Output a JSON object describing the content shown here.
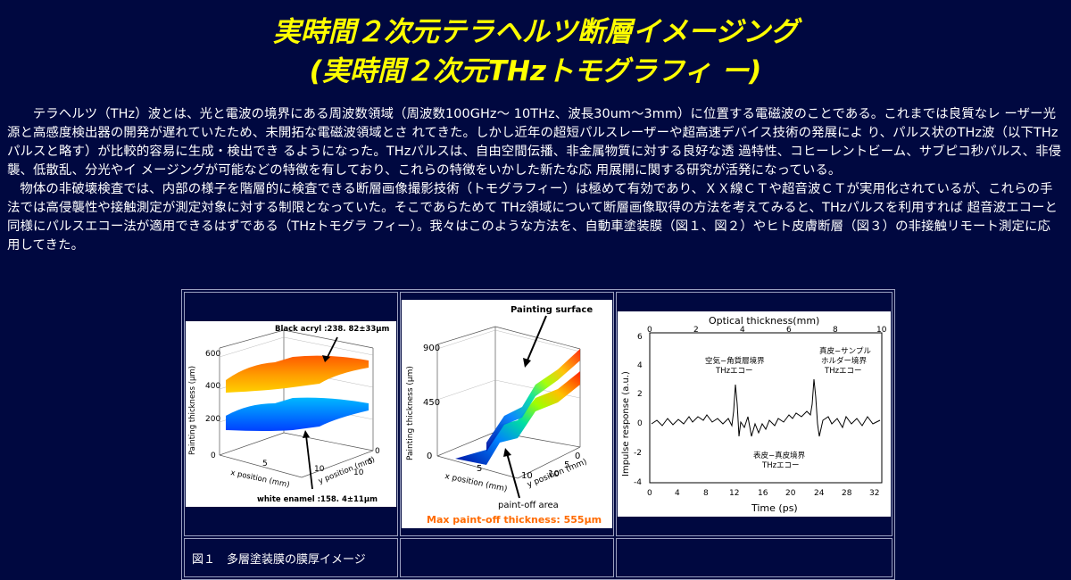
{
  "title": {
    "line1": "実時間２次元テラヘルツ断層イメージング",
    "line2": "(実時間２次元THzトモグラフィ ー)"
  },
  "intro": {
    "p1": "テラヘルツ（THz）波とは、光と電波の境界にある周波数領域（周波数100GHz～ 10THz、波長30um～3mm）に位置する電磁波のことである。これまでは良質なレ ーザー光源と高感度検出器の開発が遅れていたため、未開拓な電磁波領域とさ れてきた。しかし近年の超短パルスレーザーや超高速デバイス技術の発展によ り、パルス状のTHz波（以下THzパルスと略す）が比較的容易に生成・検出でき るようになった。THzパルスは、自由空間伝播、非金属物質に対する良好な透 過特性、コヒーレントビーム、サブピコ秒パルス、非侵襲、低散乱、分光やイ メージングが可能などの特徴を有しており、これらの特徴をいかした新たな応 用展開に関する研究が活発になっている。",
    "p2": "物体の非破壊検査では、内部の様子を階層的に検査できる断層画像撮影技術（トモグラフィー）は極めて有効であり、ＸＸ線ＣＴや超音波ＣＴが実用化されているが、これらの手法では高侵襲性や接触測定が測定対象に対する制限となっていた。そこであらためて THz領域について断層画像取得の方法を考えてみると、THzパルスを利用すれば 超音波エコーと同様にパルスエコー法が適用できるはずである（THzトモグラ フィー）。我々はこのような方法を、自動車塗装膜（図１、図２）やヒト皮膚断層（図３）の非接触リモート測定に応用してきた。"
  },
  "figure1": {
    "top_label": "Black acryl :238. 82±33μm",
    "bottom_label": "white enamel :158. 4±11μm",
    "zlabel": "Painting thickness (μm)",
    "xlabel": "x position (mm)",
    "ylabel": "y position (mm)",
    "z_ticks": [
      "600",
      "400",
      "200",
      "0"
    ],
    "x_ticks": [
      "5",
      "10"
    ],
    "y_ticks": [
      "0",
      "5",
      "10"
    ],
    "caption": "図１　多層塗装膜の膜厚イメージ"
  },
  "figure2": {
    "top_label": "Painting surface",
    "zlabel": "Painting thickness (μm)",
    "xlabel": "x position (mm)",
    "ylabel": "y position (mm)",
    "z_ticks": [
      "900",
      "450",
      "0"
    ],
    "x_ticks": [
      "5",
      "10"
    ],
    "y_ticks": [
      "0",
      "5",
      "10"
    ],
    "bottom_label": "paint-off area",
    "highlight": "Max paint-off thickness: 555μm"
  },
  "figure3": {
    "top_axis_label": "Optical thickness(mm)",
    "top_ticks": [
      "0",
      "2",
      "4",
      "6",
      "8",
      "10"
    ],
    "ylabel": "Impulse response (a.u.)",
    "y_ticks": [
      "6",
      "4",
      "2",
      "0",
      "-2",
      "-4"
    ],
    "xlabel": "Time (ps)",
    "x_ticks": [
      "0",
      "4",
      "8",
      "12",
      "16",
      "20",
      "24",
      "28",
      "32"
    ],
    "ann1_l1": "空気−角質層境界",
    "ann1_l2": "THzエコー",
    "ann2_l1": "真皮−サンプル",
    "ann2_l2": "ホルダー境界",
    "ann2_l3": "THzエコー",
    "ann3_l1": "表皮−真皮境界",
    "ann3_l2": "THzエコー"
  },
  "colors": {
    "background": "#000840",
    "title": "#ffff00",
    "text": "#ffffff",
    "highlight": "#ff6a00"
  }
}
